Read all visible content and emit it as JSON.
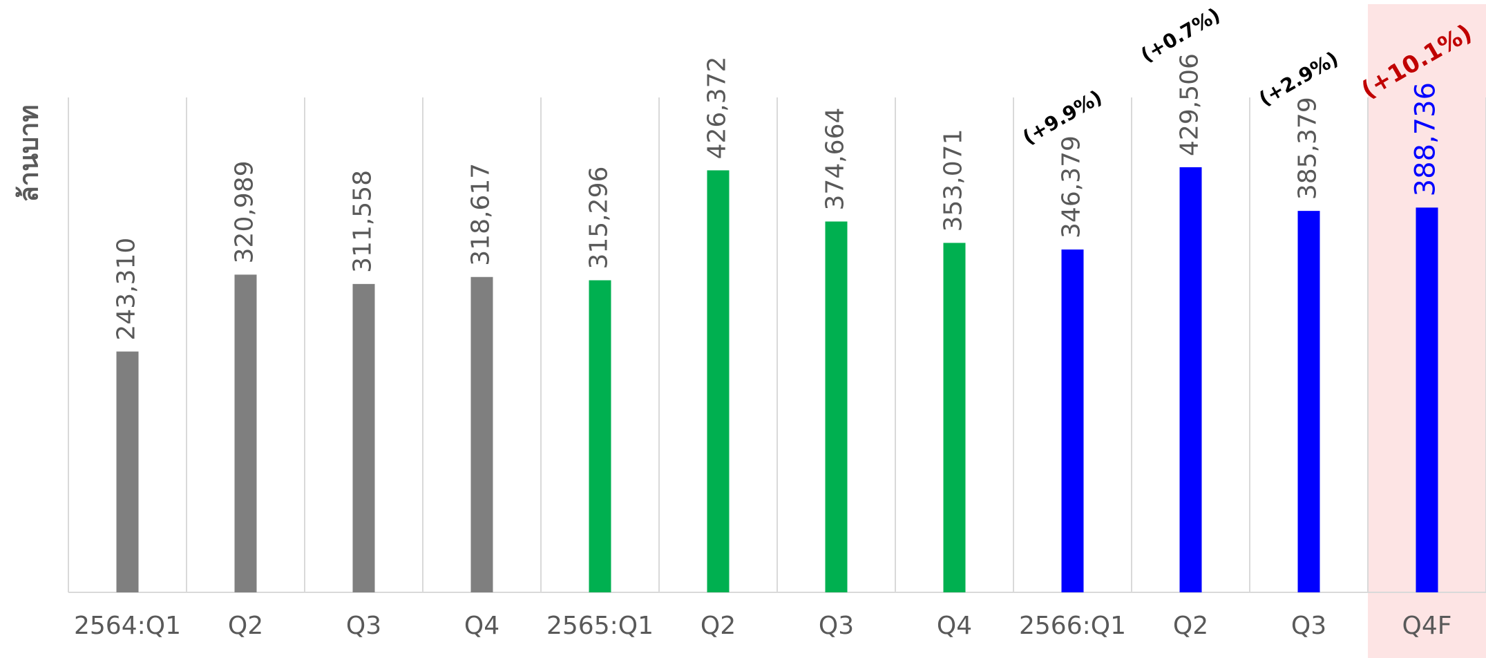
{
  "chart_data": {
    "type": "bar",
    "y_axis_label": "ล้านบาท",
    "categories": [
      "2564:Q1",
      "Q2",
      "Q3",
      "Q4",
      "2565:Q1",
      "Q2",
      "Q3",
      "Q4",
      "2566:Q1",
      "Q2",
      "Q3",
      "Q4F"
    ],
    "values": [
      243310,
      320989,
      311558,
      318617,
      315296,
      426372,
      374664,
      353071,
      346379,
      429506,
      385379,
      388736
    ],
    "value_labels": [
      "243,310",
      "320,989",
      "311,558",
      "318,617",
      "315,296",
      "426,372",
      "374,664",
      "353,071",
      "346,379",
      "429,506",
      "385,379",
      "388,736"
    ],
    "colors": [
      "#7f7f7f",
      "#7f7f7f",
      "#7f7f7f",
      "#7f7f7f",
      "#00b050",
      "#00b050",
      "#00b050",
      "#00b050",
      "#0000ff",
      "#0000ff",
      "#0000ff",
      "#0000ff"
    ],
    "value_label_colors": [
      "#595959",
      "#595959",
      "#595959",
      "#595959",
      "#595959",
      "#595959",
      "#595959",
      "#595959",
      "#595959",
      "#595959",
      "#595959",
      "#0000ff"
    ],
    "annotations": [
      null,
      null,
      null,
      null,
      null,
      null,
      null,
      null,
      "(+9.9%)",
      "(+0.7%)",
      "(+2.9%)",
      "(+10.1%)"
    ],
    "annotation_colors": [
      null,
      null,
      null,
      null,
      null,
      null,
      null,
      null,
      "#000000",
      "#000000",
      "#000000",
      "#c00000"
    ],
    "band_colors": [
      null,
      null,
      null,
      null,
      null,
      null,
      null,
      null,
      null,
      null,
      null,
      "#fde4e4"
    ],
    "ylim": [
      0,
      500000
    ],
    "grid": true
  }
}
